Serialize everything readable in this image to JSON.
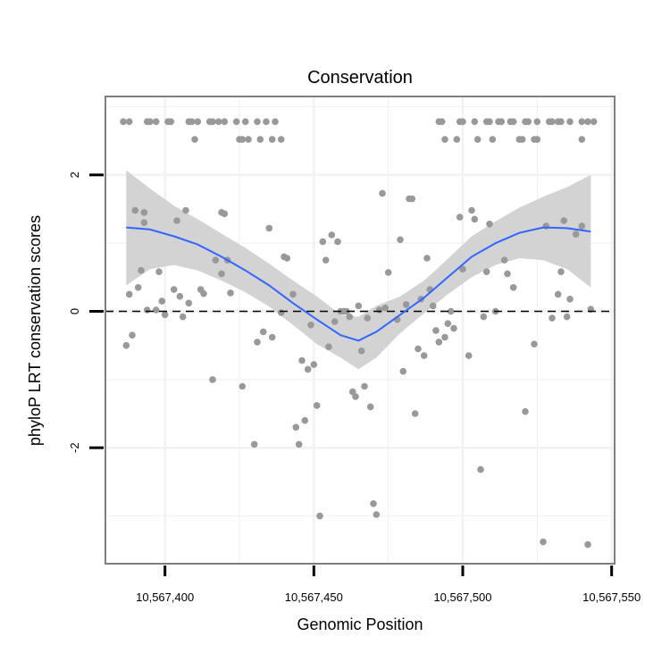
{
  "chart_data": {
    "type": "scatter",
    "title": "Conservation",
    "xlabel": "Genomic Position",
    "ylabel": "phyloP LRT conservation scores",
    "xlim": [
      10567380,
      10567551
    ],
    "ylim": [
      -3.7,
      3.15
    ],
    "x_ticks": [
      10567400,
      10567450,
      10567500,
      10567550
    ],
    "x_tick_labels": [
      "10,567,400",
      "10,567,450",
      "10,567,500",
      "10,567,550"
    ],
    "y_ticks": [
      -2,
      0,
      2
    ],
    "y_tick_labels": [
      "-2",
      "0",
      "2"
    ],
    "reference_line": {
      "y": 0,
      "style": "dashed",
      "color": "#000000"
    },
    "colors": {
      "points": "#999999",
      "smooth": "#3366ff",
      "ribbon": "#d3d3d3",
      "grid": "#f2f2f2",
      "panel_border": "#7f7f7f"
    },
    "grid": true,
    "points": [
      {
        "x": 10567386,
        "y": 2.78
      },
      {
        "x": 10567388,
        "y": 2.78
      },
      {
        "x": 10567394,
        "y": 2.78
      },
      {
        "x": 10567395,
        "y": 2.78
      },
      {
        "x": 10567397,
        "y": 2.78
      },
      {
        "x": 10567401,
        "y": 2.78
      },
      {
        "x": 10567402,
        "y": 2.78
      },
      {
        "x": 10567408,
        "y": 2.78
      },
      {
        "x": 10567409,
        "y": 2.78
      },
      {
        "x": 10567411,
        "y": 2.78
      },
      {
        "x": 10567415,
        "y": 2.78
      },
      {
        "x": 10567416,
        "y": 2.78
      },
      {
        "x": 10567418,
        "y": 2.78
      },
      {
        "x": 10567420,
        "y": 2.78
      },
      {
        "x": 10567424,
        "y": 2.78
      },
      {
        "x": 10567427,
        "y": 2.78
      },
      {
        "x": 10567431,
        "y": 2.78
      },
      {
        "x": 10567434,
        "y": 2.78
      },
      {
        "x": 10567437,
        "y": 2.78
      },
      {
        "x": 10567492,
        "y": 2.78
      },
      {
        "x": 10567493,
        "y": 2.78
      },
      {
        "x": 10567499,
        "y": 2.78
      },
      {
        "x": 10567500,
        "y": 2.78
      },
      {
        "x": 10567504,
        "y": 2.78
      },
      {
        "x": 10567508,
        "y": 2.78
      },
      {
        "x": 10567509,
        "y": 2.78
      },
      {
        "x": 10567512,
        "y": 2.78
      },
      {
        "x": 10567513,
        "y": 2.78
      },
      {
        "x": 10567516,
        "y": 2.78
      },
      {
        "x": 10567517,
        "y": 2.78
      },
      {
        "x": 10567521,
        "y": 2.78
      },
      {
        "x": 10567522,
        "y": 2.78
      },
      {
        "x": 10567525,
        "y": 2.78
      },
      {
        "x": 10567529,
        "y": 2.78
      },
      {
        "x": 10567530,
        "y": 2.78
      },
      {
        "x": 10567532,
        "y": 2.78
      },
      {
        "x": 10567533,
        "y": 2.78
      },
      {
        "x": 10567536,
        "y": 2.78
      },
      {
        "x": 10567540,
        "y": 2.78
      },
      {
        "x": 10567542,
        "y": 2.78
      },
      {
        "x": 10567544,
        "y": 2.78
      },
      {
        "x": 10567410,
        "y": 2.52
      },
      {
        "x": 10567425,
        "y": 2.52
      },
      {
        "x": 10567426,
        "y": 2.52
      },
      {
        "x": 10567428,
        "y": 2.52
      },
      {
        "x": 10567432,
        "y": 2.52
      },
      {
        "x": 10567436,
        "y": 2.52
      },
      {
        "x": 10567439,
        "y": 2.52
      },
      {
        "x": 10567494,
        "y": 2.52
      },
      {
        "x": 10567498,
        "y": 2.52
      },
      {
        "x": 10567505,
        "y": 2.52
      },
      {
        "x": 10567510,
        "y": 2.52
      },
      {
        "x": 10567519,
        "y": 2.52
      },
      {
        "x": 10567520,
        "y": 2.52
      },
      {
        "x": 10567524,
        "y": 2.52
      },
      {
        "x": 10567525,
        "y": 2.52
      },
      {
        "x": 10567540,
        "y": 2.52
      },
      {
        "x": 10567387,
        "y": -0.5
      },
      {
        "x": 10567388,
        "y": 0.25
      },
      {
        "x": 10567389,
        "y": -0.35
      },
      {
        "x": 10567390,
        "y": 1.48
      },
      {
        "x": 10567391,
        "y": 0.35
      },
      {
        "x": 10567392,
        "y": 0.6
      },
      {
        "x": 10567393,
        "y": 1.45
      },
      {
        "x": 10567393,
        "y": 1.3
      },
      {
        "x": 10567394,
        "y": 0.02
      },
      {
        "x": 10567397,
        "y": 0.02
      },
      {
        "x": 10567398,
        "y": 0.58
      },
      {
        "x": 10567399,
        "y": 0.15
      },
      {
        "x": 10567400,
        "y": -0.05
      },
      {
        "x": 10567403,
        "y": 0.32
      },
      {
        "x": 10567404,
        "y": 1.33
      },
      {
        "x": 10567405,
        "y": 0.22
      },
      {
        "x": 10567406,
        "y": -0.08
      },
      {
        "x": 10567407,
        "y": 1.48
      },
      {
        "x": 10567408,
        "y": 0.12
      },
      {
        "x": 10567412,
        "y": 0.32
      },
      {
        "x": 10567413,
        "y": 0.26
      },
      {
        "x": 10567416,
        "y": -1.0
      },
      {
        "x": 10567417,
        "y": 0.75
      },
      {
        "x": 10567419,
        "y": 1.45
      },
      {
        "x": 10567419,
        "y": 0.55
      },
      {
        "x": 10567420,
        "y": 1.43
      },
      {
        "x": 10567421,
        "y": 0.75
      },
      {
        "x": 10567422,
        "y": 0.27
      },
      {
        "x": 10567426,
        "y": -1.1
      },
      {
        "x": 10567430,
        "y": -1.95
      },
      {
        "x": 10567431,
        "y": -0.45
      },
      {
        "x": 10567433,
        "y": -0.3
      },
      {
        "x": 10567435,
        "y": 1.22
      },
      {
        "x": 10567436,
        "y": -0.38
      },
      {
        "x": 10567439,
        "y": -0.02
      },
      {
        "x": 10567440,
        "y": 0.8
      },
      {
        "x": 10567441,
        "y": 0.78
      },
      {
        "x": 10567443,
        "y": 0.25
      },
      {
        "x": 10567444,
        "y": -1.7
      },
      {
        "x": 10567445,
        "y": -1.95
      },
      {
        "x": 10567446,
        "y": -0.72
      },
      {
        "x": 10567447,
        "y": -1.6
      },
      {
        "x": 10567448,
        "y": -0.85
      },
      {
        "x": 10567449,
        "y": -0.2
      },
      {
        "x": 10567450,
        "y": -0.78
      },
      {
        "x": 10567451,
        "y": -1.38
      },
      {
        "x": 10567452,
        "y": -3.0
      },
      {
        "x": 10567453,
        "y": 1.02
      },
      {
        "x": 10567454,
        "y": 0.75
      },
      {
        "x": 10567455,
        "y": -0.52
      },
      {
        "x": 10567456,
        "y": 1.12
      },
      {
        "x": 10567457,
        "y": -0.15
      },
      {
        "x": 10567458,
        "y": 1.02
      },
      {
        "x": 10567459,
        "y": 0.0
      },
      {
        "x": 10567460,
        "y": 0.0
      },
      {
        "x": 10567461,
        "y": 0.0
      },
      {
        "x": 10567462,
        "y": -0.08
      },
      {
        "x": 10567463,
        "y": -1.18
      },
      {
        "x": 10567464,
        "y": -1.25
      },
      {
        "x": 10567465,
        "y": 0.08
      },
      {
        "x": 10567466,
        "y": -0.58
      },
      {
        "x": 10567467,
        "y": -1.1
      },
      {
        "x": 10567468,
        "y": -0.1
      },
      {
        "x": 10567469,
        "y": -1.4
      },
      {
        "x": 10567470,
        "y": -2.82
      },
      {
        "x": 10567471,
        "y": -2.98
      },
      {
        "x": 10567472,
        "y": 0.02
      },
      {
        "x": 10567473,
        "y": 1.73
      },
      {
        "x": 10567474,
        "y": 0.05
      },
      {
        "x": 10567475,
        "y": 0.57
      },
      {
        "x": 10567478,
        "y": -0.12
      },
      {
        "x": 10567479,
        "y": 1.05
      },
      {
        "x": 10567480,
        "y": -0.88
      },
      {
        "x": 10567481,
        "y": 0.1
      },
      {
        "x": 10567482,
        "y": 1.65
      },
      {
        "x": 10567483,
        "y": 1.65
      },
      {
        "x": 10567484,
        "y": -1.5
      },
      {
        "x": 10567485,
        "y": -0.55
      },
      {
        "x": 10567486,
        "y": 0.18
      },
      {
        "x": 10567487,
        "y": -0.65
      },
      {
        "x": 10567488,
        "y": 0.78
      },
      {
        "x": 10567489,
        "y": 0.32
      },
      {
        "x": 10567490,
        "y": 0.08
      },
      {
        "x": 10567491,
        "y": -0.28
      },
      {
        "x": 10567492,
        "y": -0.45
      },
      {
        "x": 10567494,
        "y": -0.38
      },
      {
        "x": 10567495,
        "y": -0.18
      },
      {
        "x": 10567496,
        "y": 0.0
      },
      {
        "x": 10567497,
        "y": -0.25
      },
      {
        "x": 10567499,
        "y": 1.38
      },
      {
        "x": 10567500,
        "y": 0.62
      },
      {
        "x": 10567502,
        "y": -0.65
      },
      {
        "x": 10567503,
        "y": 1.48
      },
      {
        "x": 10567504,
        "y": 1.35
      },
      {
        "x": 10567506,
        "y": -2.32
      },
      {
        "x": 10567507,
        "y": -0.08
      },
      {
        "x": 10567508,
        "y": 0.58
      },
      {
        "x": 10567509,
        "y": 1.28
      },
      {
        "x": 10567511,
        "y": 0.0
      },
      {
        "x": 10567514,
        "y": 0.75
      },
      {
        "x": 10567515,
        "y": 0.55
      },
      {
        "x": 10567517,
        "y": 0.35
      },
      {
        "x": 10567521,
        "y": -1.47
      },
      {
        "x": 10567524,
        "y": -0.48
      },
      {
        "x": 10567527,
        "y": -3.38
      },
      {
        "x": 10567528,
        "y": 1.25
      },
      {
        "x": 10567530,
        "y": -0.1
      },
      {
        "x": 10567532,
        "y": 0.25
      },
      {
        "x": 10567533,
        "y": 0.58
      },
      {
        "x": 10567534,
        "y": 1.33
      },
      {
        "x": 10567535,
        "y": -0.08
      },
      {
        "x": 10567536,
        "y": 0.18
      },
      {
        "x": 10567538,
        "y": 1.13
      },
      {
        "x": 10567540,
        "y": 1.25
      },
      {
        "x": 10567542,
        "y": -3.42
      },
      {
        "x": 10567543,
        "y": 0.03
      }
    ],
    "smooth_line": {
      "x": [
        10567387,
        10567395,
        10567403,
        10567411,
        10567419,
        10567427,
        10567435,
        10567443,
        10567451,
        10567459,
        10567465,
        10567471,
        10567479,
        10567487,
        10567495,
        10567503,
        10567511,
        10567519,
        10567527,
        10567535,
        10567543
      ],
      "y": [
        1.23,
        1.2,
        1.1,
        0.98,
        0.8,
        0.6,
        0.38,
        0.12,
        -0.12,
        -0.35,
        -0.43,
        -0.3,
        -0.05,
        0.2,
        0.5,
        0.8,
        1.0,
        1.15,
        1.23,
        1.22,
        1.17
      ],
      "lower": [
        0.38,
        0.62,
        0.68,
        0.6,
        0.45,
        0.28,
        0.07,
        -0.2,
        -0.48,
        -0.68,
        -0.85,
        -0.68,
        -0.32,
        -0.03,
        0.25,
        0.5,
        0.68,
        0.78,
        0.75,
        0.62,
        0.35
      ],
      "upper": [
        2.07,
        1.8,
        1.55,
        1.35,
        1.14,
        0.93,
        0.7,
        0.45,
        0.22,
        -0.05,
        -0.08,
        0.08,
        0.22,
        0.45,
        0.77,
        1.1,
        1.32,
        1.52,
        1.68,
        1.82,
        2.0
      ]
    }
  }
}
